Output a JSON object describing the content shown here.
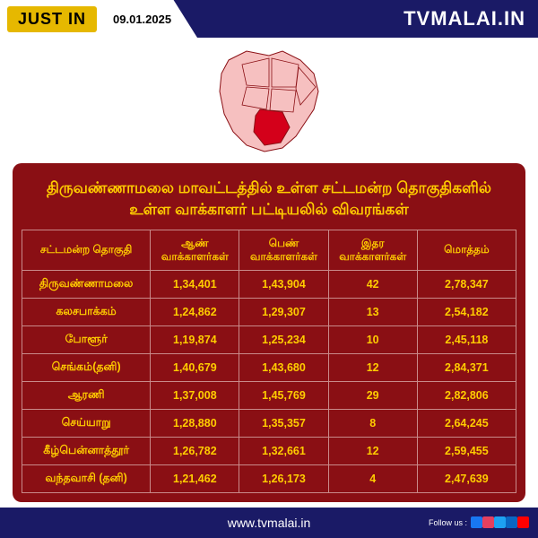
{
  "topbar": {
    "just_in": "JUST IN",
    "date": "09.01.2025",
    "brand": "TVMALAI.IN",
    "bg_color": "#1a1a66",
    "accent_color": "#e6b800"
  },
  "map": {
    "outline_fill": "#f6c0c0",
    "highlight_fill": "#d4001a",
    "stroke": "#8a0f14"
  },
  "card": {
    "title": "திருவண்ணாமலை மாவட்டத்தில் உள்ள சட்டமன்ற தொகுதிகளில் உள்ள வாக்காளர் பட்டியலில் விவரங்கள்",
    "bg_color": "#8a0f14",
    "text_color": "#ffcc00",
    "border_color": "#c98a8a"
  },
  "table": {
    "columns": [
      "சட்டமன்ற தொகுதி",
      "ஆண் வாக்காளர்கள்",
      "பெண் வாக்காளர்கள்",
      "இதர வாக்காளர்கள்",
      "மொத்தம்"
    ],
    "rows": [
      [
        "திருவண்ணாமலை",
        "1,34,401",
        "1,43,904",
        "42",
        "2,78,347"
      ],
      [
        "கலசபாக்கம்",
        "1,24,862",
        "1,29,307",
        "13",
        "2,54,182"
      ],
      [
        "போளூர்",
        "1,19,874",
        "1,25,234",
        "10",
        "2,45,118"
      ],
      [
        "செங்கம்(தனி)",
        "1,40,679",
        "1,43,680",
        "12",
        "2,84,371"
      ],
      [
        "ஆரணி",
        "1,37,008",
        "1,45,769",
        "29",
        "2,82,806"
      ],
      [
        "செய்யாறு",
        "1,28,880",
        "1,35,357",
        "8",
        "2,64,245"
      ],
      [
        "கீழ்பென்னாத்தூர்",
        "1,26,782",
        "1,32,661",
        "12",
        "2,59,455"
      ],
      [
        "வந்தவாசி (தனி)",
        "1,21,462",
        "1,26,173",
        "4",
        "2,47,639"
      ]
    ],
    "col_widths": [
      "26%",
      "18%",
      "18%",
      "18%",
      "20%"
    ]
  },
  "footer": {
    "url": "www.tvmalai.in",
    "follow_label": "Follow us :",
    "socials": [
      {
        "name": "facebook",
        "color": "#1877f2"
      },
      {
        "name": "instagram",
        "color": "#e4405f"
      },
      {
        "name": "twitter",
        "color": "#1da1f2"
      },
      {
        "name": "linkedin",
        "color": "#0a66c2"
      },
      {
        "name": "youtube",
        "color": "#ff0000"
      }
    ]
  }
}
